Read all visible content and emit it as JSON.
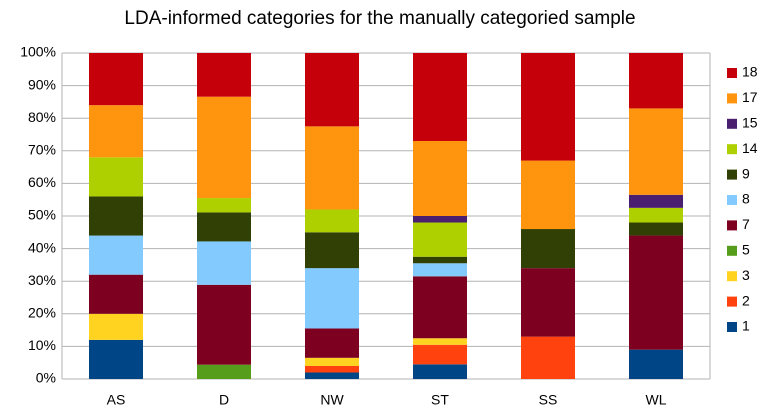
{
  "chart_data": {
    "type": "stacked_bar",
    "title": "LDA-informed categories for the manually categoried sample",
    "categories": [
      "AS",
      "D",
      "NW",
      "ST",
      "SS",
      "WL"
    ],
    "series": [
      {
        "name": "1",
        "color": "#004586",
        "values": [
          12,
          0,
          2,
          4.5,
          0,
          9
        ]
      },
      {
        "name": "2",
        "color": "#ff420e",
        "values": [
          0,
          0,
          2,
          6,
          13,
          0
        ]
      },
      {
        "name": "3",
        "color": "#ffd320",
        "values": [
          8,
          0,
          2.5,
          2,
          0,
          0
        ]
      },
      {
        "name": "5",
        "color": "#579d1c",
        "values": [
          0,
          4.4,
          0,
          0,
          0,
          0
        ]
      },
      {
        "name": "7",
        "color": "#7e0021",
        "values": [
          12,
          24.5,
          9,
          19,
          21,
          35
        ]
      },
      {
        "name": "8",
        "color": "#83caff",
        "values": [
          12,
          13.3,
          18.5,
          4,
          0,
          0
        ]
      },
      {
        "name": "9",
        "color": "#314004",
        "values": [
          12,
          8.9,
          11,
          2,
          12,
          4
        ]
      },
      {
        "name": "14",
        "color": "#aecf00",
        "values": [
          12,
          4.4,
          7,
          10.5,
          0,
          4.5
        ]
      },
      {
        "name": "15",
        "color": "#4b1f6f",
        "values": [
          0,
          0,
          0,
          2,
          0,
          4
        ]
      },
      {
        "name": "17",
        "color": "#ff950e",
        "values": [
          16,
          31.1,
          25.5,
          23,
          21,
          26.5
        ]
      },
      {
        "name": "18",
        "color": "#c5000b",
        "values": [
          16,
          13.4,
          22.5,
          27,
          33,
          17
        ]
      }
    ],
    "ylim": [
      0,
      100
    ],
    "yticks": [
      {
        "value": 0,
        "label": "0%"
      },
      {
        "value": 10,
        "label": "10%"
      },
      {
        "value": 20,
        "label": "20%"
      },
      {
        "value": 30,
        "label": "30%"
      },
      {
        "value": 40,
        "label": "40%"
      },
      {
        "value": 50,
        "label": "50%"
      },
      {
        "value": 60,
        "label": "60%"
      },
      {
        "value": 70,
        "label": "70%"
      },
      {
        "value": 80,
        "label": "80%"
      },
      {
        "value": 90,
        "label": "90%"
      },
      {
        "value": 100,
        "label": "100%"
      }
    ],
    "grid": true,
    "legend": "right"
  }
}
